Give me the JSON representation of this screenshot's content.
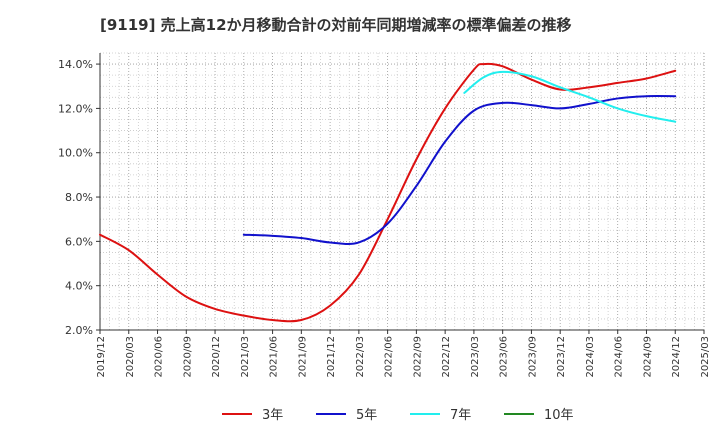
{
  "chart_data": {
    "type": "line",
    "title": "[9119]  売上高12か月移動合計の対前年同期増減率の標準偏差の推移",
    "xlabel": "",
    "ylabel": "",
    "ylim": [
      2.0,
      14.5
    ],
    "y_ticks": [
      "2.0%",
      "4.0%",
      "6.0%",
      "8.0%",
      "10.0%",
      "12.0%",
      "14.0%"
    ],
    "y_tick_values": [
      2,
      4,
      6,
      8,
      10,
      12,
      14
    ],
    "x_ticks": [
      "2019/12",
      "2020/03",
      "2020/06",
      "2020/09",
      "2020/12",
      "2021/03",
      "2021/06",
      "2021/09",
      "2021/12",
      "2022/03",
      "2022/06",
      "2022/09",
      "2022/12",
      "2023/03",
      "2023/06",
      "2023/09",
      "2023/12",
      "2024/03",
      "2024/06",
      "2024/09",
      "2024/12",
      "2025/03"
    ],
    "grid": true,
    "legend_position": "bottom",
    "series": [
      {
        "name": "3年",
        "color": "#dd1111",
        "points": [
          [
            "2019/12",
            6.3
          ],
          [
            "2020/03",
            5.6
          ],
          [
            "2020/06",
            4.5
          ],
          [
            "2020/09",
            3.5
          ],
          [
            "2020/12",
            2.95
          ],
          [
            "2021/03",
            2.65
          ],
          [
            "2021/06",
            2.45
          ],
          [
            "2021/09",
            2.45
          ],
          [
            "2021/12",
            3.1
          ],
          [
            "2022/03",
            4.5
          ],
          [
            "2022/06",
            7.0
          ],
          [
            "2022/09",
            9.7
          ],
          [
            "2022/12",
            12.0
          ],
          [
            "2023/03",
            13.75
          ],
          [
            "2023/04",
            14.0
          ],
          [
            "2023/06",
            13.9
          ],
          [
            "2023/09",
            13.3
          ],
          [
            "2023/12",
            12.85
          ],
          [
            "2024/03",
            12.95
          ],
          [
            "2024/06",
            13.15
          ],
          [
            "2024/09",
            13.35
          ],
          [
            "2024/12",
            13.7
          ]
        ]
      },
      {
        "name": "5年",
        "color": "#1111cc",
        "points": [
          [
            "2021/03",
            6.3
          ],
          [
            "2021/06",
            6.25
          ],
          [
            "2021/09",
            6.15
          ],
          [
            "2021/12",
            5.95
          ],
          [
            "2022/03",
            5.95
          ],
          [
            "2022/06",
            6.8
          ],
          [
            "2022/09",
            8.5
          ],
          [
            "2022/12",
            10.5
          ],
          [
            "2023/03",
            11.9
          ],
          [
            "2023/06",
            12.25
          ],
          [
            "2023/09",
            12.15
          ],
          [
            "2023/12",
            12.0
          ],
          [
            "2024/03",
            12.2
          ],
          [
            "2024/06",
            12.45
          ],
          [
            "2024/09",
            12.55
          ],
          [
            "2024/12",
            12.55
          ]
        ]
      },
      {
        "name": "7年",
        "color": "#22eeee",
        "points": [
          [
            "2023/02",
            12.7
          ],
          [
            "2023/04",
            13.4
          ],
          [
            "2023/06",
            13.65
          ],
          [
            "2023/09",
            13.45
          ],
          [
            "2023/12",
            12.95
          ],
          [
            "2024/03",
            12.5
          ],
          [
            "2024/06",
            12.0
          ],
          [
            "2024/09",
            11.65
          ],
          [
            "2024/12",
            11.4
          ]
        ]
      },
      {
        "name": "10年",
        "color": "#228822",
        "points": []
      }
    ]
  }
}
